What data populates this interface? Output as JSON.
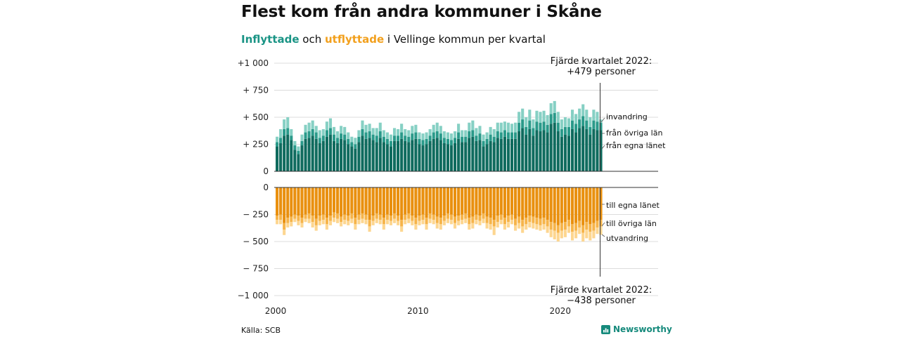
{
  "title": "Flest kom från andra kommuner i Skåne",
  "subtitle": {
    "in_word": "Inflyttade",
    "and_word": " och ",
    "out_word": "utflyttade",
    "rest": " i Vellinge kommun per kvartal"
  },
  "source": "Källa: SCB",
  "brand": "Newsworthy",
  "colors": {
    "in_own": "#0f6b5e",
    "in_other": "#2a9a8a",
    "in_abroad": "#86d0c4",
    "out_own": "#e9900f",
    "out_other": "#f6b44a",
    "out_abroad": "#fdd690"
  },
  "chart_data": {
    "type": "bar",
    "stacked": true,
    "x_start": "2000 Q1",
    "x_end": "2022 Q4",
    "x_ticks": [
      "2000",
      "2010",
      "2020"
    ],
    "top_panel": {
      "ylim": [
        0,
        1000
      ],
      "y_ticks": [
        "+1 000",
        "+  750",
        "+  500",
        "+  250",
        "0"
      ],
      "series": [
        {
          "name": "från egna länet",
          "values": [
            230,
            260,
            330,
            340,
            290,
            200,
            160,
            240,
            300,
            310,
            330,
            300,
            260,
            280,
            320,
            340,
            280,
            260,
            300,
            290,
            250,
            230,
            210,
            270,
            330,
            300,
            310,
            290,
            270,
            310,
            270,
            250,
            230,
            280,
            280,
            300,
            280,
            270,
            290,
            300,
            250,
            240,
            250,
            280,
            300,
            310,
            290,
            260,
            250,
            240,
            260,
            300,
            270,
            270,
            310,
            320,
            280,
            290,
            230,
            250,
            280,
            270,
            310,
            300,
            320,
            300,
            300,
            300,
            370,
            400,
            340,
            390,
            330,
            380,
            370,
            380,
            360,
            440,
            450,
            370,
            320,
            340,
            330,
            390,
            360,
            400,
            420,
            390,
            340,
            390,
            380,
            380
          ]
        },
        {
          "name": "från övriga län",
          "values": [
            40,
            50,
            60,
            60,
            40,
            40,
            30,
            40,
            60,
            60,
            60,
            60,
            50,
            50,
            60,
            60,
            60,
            50,
            50,
            50,
            50,
            40,
            40,
            50,
            60,
            60,
            60,
            50,
            60,
            60,
            50,
            50,
            50,
            50,
            50,
            60,
            50,
            50,
            60,
            60,
            50,
            50,
            50,
            50,
            60,
            60,
            60,
            50,
            50,
            50,
            50,
            60,
            50,
            50,
            60,
            60,
            50,
            60,
            50,
            50,
            60,
            50,
            60,
            60,
            60,
            60,
            60,
            60,
            80,
            80,
            70,
            80,
            70,
            80,
            80,
            80,
            70,
            90,
            90,
            80,
            70,
            70,
            80,
            80,
            80,
            80,
            90,
            80,
            70,
            80,
            80,
            70
          ]
        },
        {
          "name": "invandring",
          "values": [
            50,
            80,
            90,
            100,
            60,
            40,
            40,
            60,
            70,
            80,
            80,
            60,
            70,
            60,
            80,
            90,
            70,
            60,
            70,
            70,
            60,
            50,
            60,
            60,
            80,
            70,
            70,
            60,
            70,
            80,
            60,
            60,
            60,
            70,
            60,
            80,
            60,
            60,
            70,
            70,
            60,
            60,
            60,
            60,
            70,
            80,
            70,
            60,
            60,
            60,
            60,
            80,
            60,
            60,
            80,
            90,
            70,
            70,
            60,
            60,
            70,
            70,
            80,
            90,
            80,
            90,
            80,
            90,
            100,
            100,
            90,
            100,
            80,
            100,
            100,
            100,
            90,
            100,
            110,
            100,
            90,
            90,
            80,
            100,
            90,
            100,
            110,
            100,
            90,
            100,
            90,
            29
          ]
        }
      ],
      "annotation": "Fjärde kvartalet 2022:\n+479 personer"
    },
    "bottom_panel": {
      "ylim": [
        -1000,
        0
      ],
      "y_ticks": [
        "0",
        "− 250",
        "− 500",
        "− 750",
        "−1 000"
      ],
      "series": [
        {
          "name": "till egna länet",
          "values": [
            -260,
            -250,
            -330,
            -280,
            -270,
            -250,
            -260,
            -280,
            -250,
            -240,
            -260,
            -290,
            -260,
            -250,
            -280,
            -260,
            -230,
            -240,
            -270,
            -250,
            -260,
            -240,
            -280,
            -250,
            -240,
            -250,
            -300,
            -260,
            -240,
            -250,
            -280,
            -250,
            -260,
            -240,
            -260,
            -300,
            -250,
            -240,
            -260,
            -280,
            -260,
            -250,
            -280,
            -240,
            -250,
            -270,
            -280,
            -260,
            -240,
            -250,
            -270,
            -260,
            -250,
            -240,
            -280,
            -270,
            -250,
            -260,
            -240,
            -270,
            -280,
            -300,
            -260,
            -250,
            -280,
            -260,
            -250,
            -290,
            -270,
            -300,
            -280,
            -260,
            -270,
            -280,
            -290,
            -280,
            -300,
            -320,
            -330,
            -350,
            -330,
            -320,
            -300,
            -340,
            -330,
            -310,
            -350,
            -320,
            -340,
            -330,
            -310,
            -300
          ]
        },
        {
          "name": "till övriga län",
          "values": [
            -40,
            -50,
            -60,
            -50,
            -50,
            -40,
            -50,
            -50,
            -40,
            -50,
            -60,
            -60,
            -50,
            -50,
            -60,
            -50,
            -50,
            -50,
            -50,
            -50,
            -50,
            -50,
            -60,
            -50,
            -50,
            -50,
            -60,
            -50,
            -50,
            -50,
            -60,
            -50,
            -50,
            -50,
            -50,
            -60,
            -50,
            -50,
            -50,
            -60,
            -50,
            -50,
            -60,
            -50,
            -50,
            -60,
            -60,
            -50,
            -50,
            -50,
            -60,
            -50,
            -50,
            -50,
            -60,
            -60,
            -50,
            -50,
            -50,
            -60,
            -60,
            -60,
            -60,
            -50,
            -60,
            -60,
            -50,
            -60,
            -60,
            -60,
            -60,
            -60,
            -60,
            -60,
            -60,
            -60,
            -60,
            -70,
            -70,
            -70,
            -70,
            -70,
            -60,
            -70,
            -70,
            -60,
            -70,
            -70,
            -70,
            -70,
            -60,
            -60
          ]
        },
        {
          "name": "utvandring",
          "values": [
            -40,
            -40,
            -50,
            -40,
            -40,
            -30,
            -40,
            -40,
            -30,
            -40,
            -50,
            -50,
            -40,
            -40,
            -50,
            -40,
            -40,
            -40,
            -40,
            -40,
            -40,
            -40,
            -50,
            -40,
            -40,
            -40,
            -50,
            -40,
            -40,
            -40,
            -50,
            -40,
            -40,
            -40,
            -40,
            -50,
            -40,
            -40,
            -40,
            -50,
            -40,
            -40,
            -50,
            -40,
            -40,
            -50,
            -50,
            -40,
            -40,
            -40,
            -50,
            -40,
            -40,
            -40,
            -50,
            -50,
            -40,
            -40,
            -40,
            -50,
            -50,
            -80,
            -50,
            -40,
            -50,
            -50,
            -40,
            -50,
            -50,
            -60,
            -50,
            -50,
            -50,
            -50,
            -50,
            -50,
            -60,
            -70,
            -80,
            -80,
            -70,
            -70,
            -60,
            -80,
            -70,
            -60,
            -80,
            -80,
            -80,
            -70,
            -60,
            -78
          ]
        }
      ],
      "annotation": "Fjärde kvartalet 2022:\n−438 personer"
    }
  }
}
